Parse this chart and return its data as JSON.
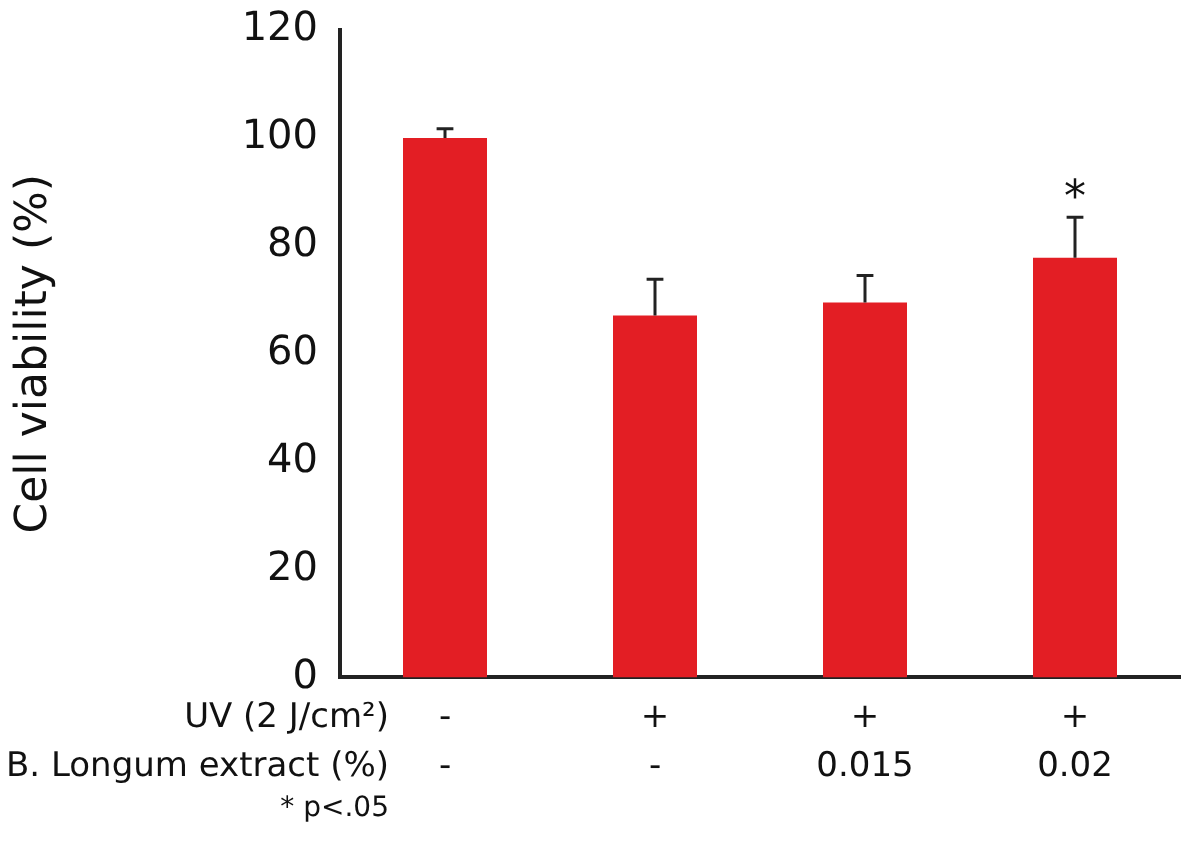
{
  "chart_data": {
    "type": "bar",
    "ylabel": "Cell viability (%)",
    "categories": [
      "-\n-",
      "+\n-",
      "+\n0.015",
      "+\n0.02"
    ],
    "values": [
      100,
      67.1,
      69.5,
      77.8
    ],
    "errors": [
      [
        100,
        101.7
      ],
      [
        67.1,
        73.8
      ],
      [
        69.5,
        74.5
      ],
      [
        77.8,
        85.3
      ]
    ],
    "color": "#e31e24",
    "ylim": [
      0,
      120
    ],
    "yticks": [
      0,
      20,
      40,
      60,
      80,
      100,
      120
    ],
    "grid": false,
    "legend": false,
    "annotations": [
      "UV (2 J/cm²)",
      "B. Longum extract (%)",
      "* p<.05",
      "*"
    ]
  }
}
